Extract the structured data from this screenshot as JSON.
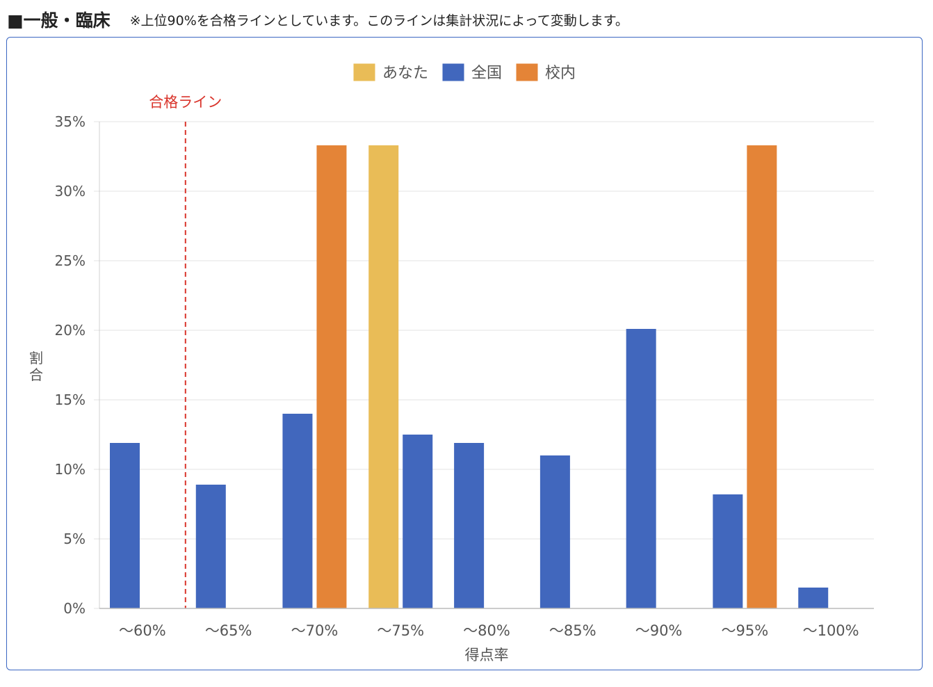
{
  "header": {
    "title": "■一般・臨床",
    "note": "※上位90%を合格ラインとしています。このラインは集計状況によって変動します。"
  },
  "chart_data": {
    "type": "bar",
    "categories": [
      "〜60%",
      "〜65%",
      "〜70%",
      "〜75%",
      "〜80%",
      "〜85%",
      "〜90%",
      "〜95%",
      "〜100%"
    ],
    "series": [
      {
        "name": "あなた",
        "color": "#e9bc57",
        "values": [
          0,
          0,
          0,
          33.3,
          0,
          0,
          0,
          0,
          0
        ]
      },
      {
        "name": "全国",
        "color": "#4167bd",
        "values": [
          11.9,
          8.9,
          14.0,
          12.5,
          11.9,
          11.0,
          20.1,
          8.2,
          1.5
        ]
      },
      {
        "name": "校内",
        "color": "#e48437",
        "values": [
          0,
          0,
          33.3,
          0,
          0,
          0,
          0,
          33.3,
          0
        ]
      }
    ],
    "ylabel": "割合",
    "xlabel": "得点率",
    "ylim": [
      0,
      35
    ],
    "yticks": [
      "0%",
      "5%",
      "10%",
      "15%",
      "20%",
      "25%",
      "30%",
      "35%"
    ],
    "grid": true,
    "legend_position": "top-center",
    "annotation": {
      "label": "合格ライン",
      "color": "#d9342b",
      "position_between": [
        "〜60%",
        "〜65%"
      ]
    }
  }
}
